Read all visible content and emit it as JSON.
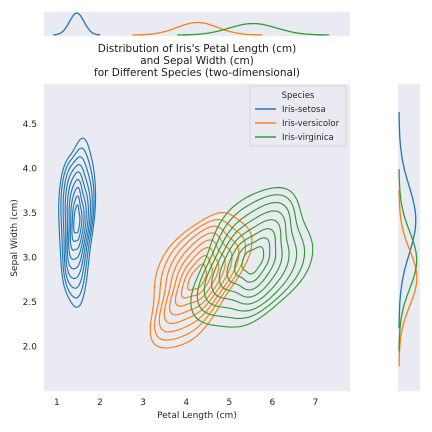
{
  "chart_data": {
    "type": "kde-2d-contour",
    "title": [
      "Distribution of Iris's Petal Length (cm)",
      "and Sepal Width (cm)",
      "for Different Species (two-dimensional)"
    ],
    "xlabel": "Petal Length (cm)",
    "ylabel": "Sepal Width (cm)",
    "xlim": [
      0.7,
      7.8
    ],
    "ylim": [
      1.5,
      4.95
    ],
    "xticks": [
      1,
      2,
      3,
      4,
      5,
      6,
      7
    ],
    "yticks": [
      2.0,
      2.5,
      3.0,
      3.5,
      4.0,
      4.5
    ],
    "ytick_labels": [
      "2.0",
      "2.5",
      "3.0",
      "3.5",
      "4.0",
      "4.5"
    ],
    "grid": false,
    "legend": {
      "title": "Species",
      "position": "top-right"
    },
    "series": [
      {
        "name": "Iris-setosa",
        "color": "#1f77b4",
        "center": [
          1.46,
          3.42
        ],
        "spread": [
          0.17,
          0.38
        ],
        "rho": 0.18,
        "levels": 9,
        "marginal_x_peak": 1.46,
        "marginal_y_peak": 3.42
      },
      {
        "name": "Iris-versicolor",
        "color": "#ff7f0e",
        "center": [
          4.26,
          2.77
        ],
        "spread": [
          0.47,
          0.31
        ],
        "rho": 0.56,
        "levels": 8,
        "marginal_x_peak": 4.26,
        "marginal_y_peak": 2.77
      },
      {
        "name": "Iris-virginica",
        "color": "#2ca02c",
        "center": [
          5.55,
          2.97
        ],
        "spread": [
          0.55,
          0.32
        ],
        "rho": 0.4,
        "levels": 8,
        "marginal_x_peak": 5.55,
        "marginal_y_peak": 2.97
      }
    ],
    "background_color": "#eaeaf2"
  }
}
